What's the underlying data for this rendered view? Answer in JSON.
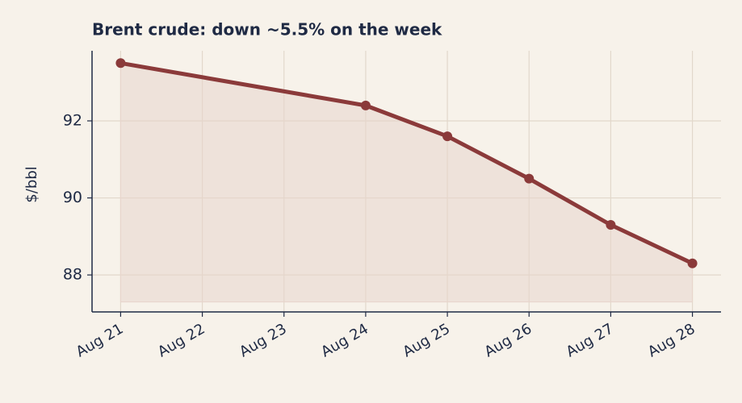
{
  "chart_data": {
    "type": "area-line",
    "title": "Brent crude: down ~5.5% on the week",
    "y_label": "$/bbl",
    "x": [
      "Aug 21",
      "Aug 24",
      "Aug 25",
      "Aug 26",
      "Aug 27",
      "Aug 28"
    ],
    "values": [
      93.5,
      92.4,
      91.6,
      90.5,
      89.3,
      88.3
    ],
    "color": "#8b3a3a",
    "fill_color": "#e8d5cc",
    "fill_to": 87.3,
    "xticks": [
      "Aug 21",
      "Aug 22",
      "Aug 23",
      "Aug 24",
      "Aug 25",
      "Aug 26",
      "Aug 27",
      "Aug 28"
    ],
    "ylim": [
      87.04,
      93.82
    ],
    "yticks": [
      88,
      90,
      92
    ],
    "grid": true
  }
}
